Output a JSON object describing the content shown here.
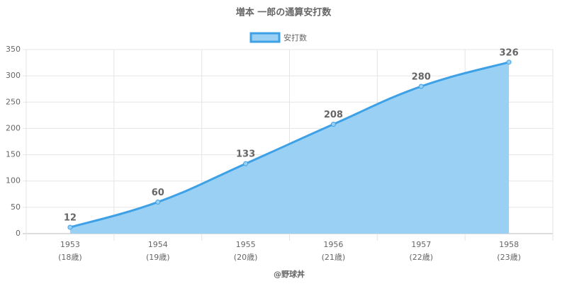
{
  "chart_data": {
    "type": "line",
    "title": "増本 一郎の通算安打数",
    "categories": [
      [
        "1953",
        "(18歳)"
      ],
      [
        "1954",
        "(19歳)"
      ],
      [
        "1955",
        "(20歳)"
      ],
      [
        "1956",
        "(21歳)"
      ],
      [
        "1957",
        "(22歳)"
      ],
      [
        "1958",
        "(23歳)"
      ]
    ],
    "series": [
      {
        "name": "安打数",
        "color": "#3ea1e6",
        "fill": "#9bd0f5",
        "values": [
          12,
          60,
          133,
          208,
          280,
          326
        ]
      }
    ],
    "x_label": "@野球丼",
    "ylim": [
      0,
      350
    ],
    "yticks": [
      0,
      50,
      100,
      150,
      200,
      250,
      300,
      350
    ],
    "grid": true,
    "legend": "top"
  }
}
